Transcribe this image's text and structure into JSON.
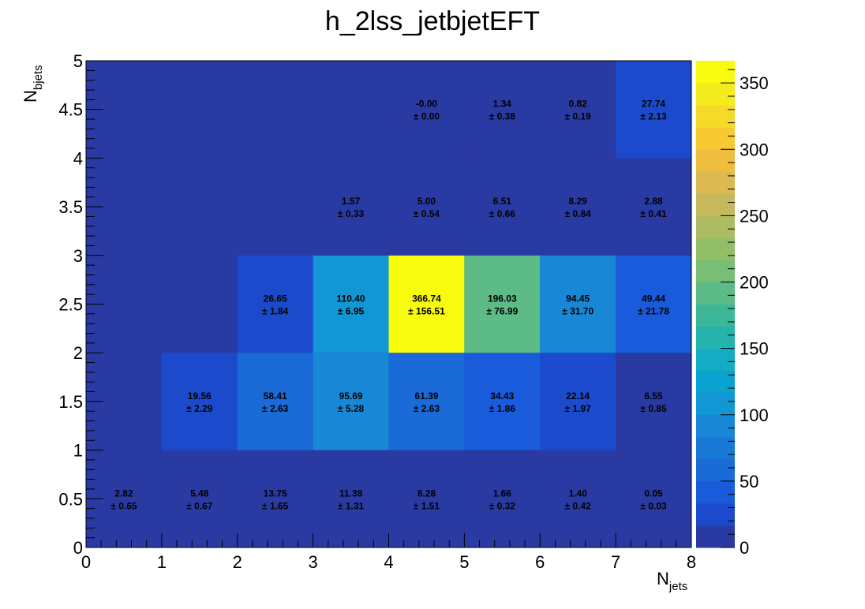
{
  "chart_data": {
    "type": "heatmap",
    "title": "h_2lss_jetbjetEFT",
    "xlabel": {
      "main": "N",
      "sub": "jets"
    },
    "ylabel": {
      "main": "N",
      "sub": "bjets"
    },
    "xlim": [
      0,
      8
    ],
    "ylim": [
      0,
      5
    ],
    "x_bin_edges": [
      0,
      1,
      2,
      3,
      4,
      5,
      6,
      7,
      8
    ],
    "y_bin_edges": [
      0,
      1,
      2,
      3,
      4,
      5
    ],
    "x_ticks": [
      "0",
      "1",
      "2",
      "3",
      "4",
      "5",
      "6",
      "7",
      "8"
    ],
    "y_ticks": [
      "0",
      "0.5",
      "1",
      "1.5",
      "2",
      "2.5",
      "3",
      "3.5",
      "4",
      "4.5",
      "5"
    ],
    "z_range": [
      0,
      366.74
    ],
    "z_ticks": [
      "0",
      "50",
      "100",
      "150",
      "200",
      "250",
      "300",
      "350"
    ],
    "palette": [
      "#2a3aa3",
      "#1b4bcc",
      "#195bdb",
      "#1a6ad8",
      "#1878d6",
      "#1888d6",
      "#1296d4",
      "#0aa2cf",
      "#14acc2",
      "#24b4ad",
      "#3cb898",
      "#5cbb86",
      "#78be74",
      "#93be68",
      "#adbb63",
      "#c6b95d",
      "#dcb951",
      "#efbe3e",
      "#f9c934",
      "#f6da2a",
      "#f5ec20",
      "#f9fb0e"
    ],
    "cells": [
      {
        "xbin": 0,
        "ybin": 0,
        "value": "2.82",
        "error": "± 0.65",
        "z": 2.82
      },
      {
        "xbin": 1,
        "ybin": 0,
        "value": "5.48",
        "error": "± 0.67",
        "z": 5.48
      },
      {
        "xbin": 2,
        "ybin": 0,
        "value": "13.75",
        "error": "± 1.65",
        "z": 13.75
      },
      {
        "xbin": 3,
        "ybin": 0,
        "value": "11.38",
        "error": "± 1.31",
        "z": 11.38
      },
      {
        "xbin": 4,
        "ybin": 0,
        "value": "8.28",
        "error": "± 1.51",
        "z": 8.28
      },
      {
        "xbin": 5,
        "ybin": 0,
        "value": "1.66",
        "error": "± 0.32",
        "z": 1.66
      },
      {
        "xbin": 6,
        "ybin": 0,
        "value": "1.40",
        "error": "± 0.42",
        "z": 1.4
      },
      {
        "xbin": 7,
        "ybin": 0,
        "value": "0.05",
        "error": "± 0.03",
        "z": 0.05
      },
      {
        "xbin": 1,
        "ybin": 1,
        "value": "19.56",
        "error": "± 2.29",
        "z": 19.56
      },
      {
        "xbin": 2,
        "ybin": 1,
        "value": "58.41",
        "error": "± 2.63",
        "z": 58.41
      },
      {
        "xbin": 3,
        "ybin": 1,
        "value": "95.69",
        "error": "± 5.28",
        "z": 95.69
      },
      {
        "xbin": 4,
        "ybin": 1,
        "value": "61.39",
        "error": "± 2.63",
        "z": 61.39
      },
      {
        "xbin": 5,
        "ybin": 1,
        "value": "34.43",
        "error": "± 1.86",
        "z": 34.43
      },
      {
        "xbin": 6,
        "ybin": 1,
        "value": "22.14",
        "error": "± 1.97",
        "z": 22.14
      },
      {
        "xbin": 7,
        "ybin": 1,
        "value": "6.55",
        "error": "± 0.85",
        "z": 6.55
      },
      {
        "xbin": 2,
        "ybin": 2,
        "value": "26.65",
        "error": "± 1.84",
        "z": 26.65
      },
      {
        "xbin": 3,
        "ybin": 2,
        "value": "110.40",
        "error": "± 6.95",
        "z": 110.4
      },
      {
        "xbin": 4,
        "ybin": 2,
        "value": "366.74",
        "error": "± 156.51",
        "z": 366.74
      },
      {
        "xbin": 5,
        "ybin": 2,
        "value": "196.03",
        "error": "± 76.99",
        "z": 196.03
      },
      {
        "xbin": 6,
        "ybin": 2,
        "value": "94.45",
        "error": "± 31.70",
        "z": 94.45
      },
      {
        "xbin": 7,
        "ybin": 2,
        "value": "49.44",
        "error": "± 21.78",
        "z": 49.44
      },
      {
        "xbin": 3,
        "ybin": 3,
        "value": "1.57",
        "error": "± 0.33",
        "z": 1.57
      },
      {
        "xbin": 4,
        "ybin": 3,
        "value": "5.00",
        "error": "± 0.54",
        "z": 5.0
      },
      {
        "xbin": 5,
        "ybin": 3,
        "value": "6.51",
        "error": "± 0.66",
        "z": 6.51
      },
      {
        "xbin": 6,
        "ybin": 3,
        "value": "8.29",
        "error": "± 0.84",
        "z": 8.29
      },
      {
        "xbin": 7,
        "ybin": 3,
        "value": "2.88",
        "error": "± 0.41",
        "z": 2.88
      },
      {
        "xbin": 4,
        "ybin": 4,
        "value": "-0.00",
        "error": "± 0.00",
        "z": 0
      },
      {
        "xbin": 5,
        "ybin": 4,
        "value": "1.34",
        "error": "± 0.38",
        "z": 1.34
      },
      {
        "xbin": 6,
        "ybin": 4,
        "value": "0.82",
        "error": "± 0.19",
        "z": 0.82
      },
      {
        "xbin": 7,
        "ybin": 4,
        "value": "27.74",
        "error": "± 2.13",
        "z": 27.74
      }
    ],
    "grid": false,
    "legend": "colorbar-right"
  }
}
